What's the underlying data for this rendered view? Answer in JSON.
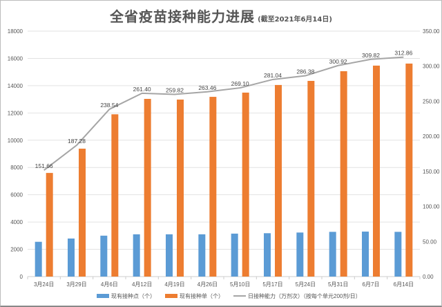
{
  "chart_data": {
    "type": "bar",
    "title": "全省疫苗接种能力进展",
    "subtitle": "(截至2021年6月14日)",
    "categories": [
      "3月24日",
      "3月29日",
      "4月6日",
      "4月12日",
      "4月19日",
      "4月26日",
      "5月10日",
      "5月17日",
      "5月24日",
      "5月31日",
      "6月7日",
      "6月14日"
    ],
    "left_axis": {
      "ylim": [
        0,
        18000
      ],
      "ticks": [
        "0",
        "2000",
        "4000",
        "6000",
        "8000",
        "10000",
        "12000",
        "14000",
        "16000",
        "18000"
      ]
    },
    "right_axis": {
      "ylim": [
        0,
        350
      ],
      "ticks": [
        "0.00",
        "50.00",
        "100.00",
        "150.00",
        "200.00",
        "250.00",
        "300.00",
        "350.00"
      ]
    },
    "grid": true,
    "legend_position": "bottom",
    "series": [
      {
        "name": "现有接种点（个）",
        "type": "bar",
        "axis": "left",
        "color": "#5b9bd5",
        "values": [
          2550,
          2790,
          3000,
          3100,
          3100,
          3100,
          3150,
          3180,
          3230,
          3280,
          3300,
          3280
        ]
      },
      {
        "name": "现有接种单（个）",
        "type": "bar",
        "axis": "left",
        "color": "#ed7d31",
        "values": [
          7600,
          9380,
          11900,
          13030,
          12980,
          13180,
          13490,
          14050,
          14350,
          15060,
          15470,
          15620
        ]
      },
      {
        "name": "日接种能力（万剂次）（按每个单元200剂/日）",
        "type": "line",
        "axis": "right",
        "color": "#a5a5a5",
        "values": [
          151.66,
          187.28,
          238.54,
          261.4,
          259.82,
          263.46,
          269.1,
          281.04,
          286.38,
          300.92,
          309.82,
          312.86
        ],
        "labels": [
          "151.66",
          "187.28",
          "238.54",
          "261.40",
          "259.82",
          "263.46",
          "269.10",
          "281.04",
          "286.38",
          "300.92",
          "309.82",
          "312.86"
        ]
      }
    ]
  }
}
